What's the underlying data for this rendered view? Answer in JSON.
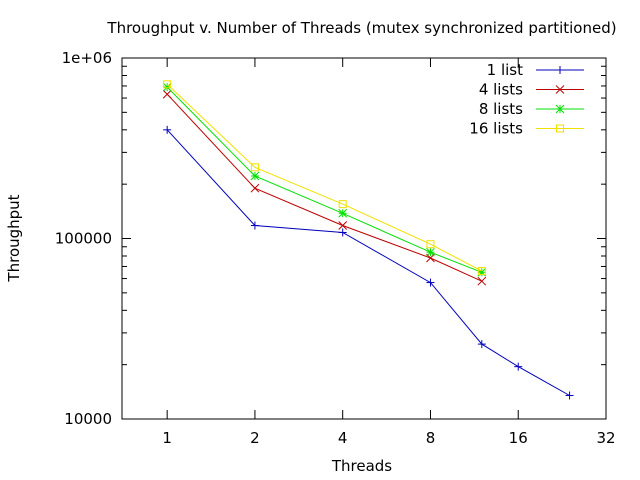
{
  "chart_data": {
    "type": "line",
    "title": "Throughput v. Number of Threads (mutex synchronized partitioned)",
    "xlabel": "Threads",
    "ylabel": "Throughput",
    "x_scale": "log2",
    "y_scale": "log10",
    "xlim": [
      0.7,
      32
    ],
    "ylim": [
      10000,
      1000000
    ],
    "x_ticks": [
      1,
      2,
      4,
      8,
      16,
      32
    ],
    "x_tick_labels": [
      "1",
      "2",
      "4",
      "8",
      "16",
      "32"
    ],
    "y_ticks": [
      10000,
      100000,
      1000000
    ],
    "y_tick_labels": [
      "10000",
      "100000",
      "1e+06"
    ],
    "grid": false,
    "legend_position": "top-right",
    "series": [
      {
        "name": "1 list",
        "color": "#0000bb",
        "marker": "plus",
        "x": [
          1,
          2,
          4,
          8,
          12,
          16,
          24
        ],
        "y": [
          400000,
          118000,
          108000,
          57000,
          26000,
          19500,
          13500
        ]
      },
      {
        "name": "4 lists",
        "color": "#bb0000",
        "marker": "x",
        "x": [
          1,
          2,
          4,
          8,
          12
        ],
        "y": [
          630000,
          190000,
          118000,
          78000,
          58000
        ]
      },
      {
        "name": "8 lists",
        "color": "#00e000",
        "marker": "star",
        "x": [
          1,
          2,
          4,
          8,
          12
        ],
        "y": [
          690000,
          222000,
          138000,
          84000,
          65000
        ]
      },
      {
        "name": "16 lists",
        "color": "#f0e000",
        "marker": "square",
        "x": [
          1,
          2,
          4,
          8,
          12
        ],
        "y": [
          715000,
          248000,
          155000,
          93000,
          66000
        ]
      }
    ]
  }
}
